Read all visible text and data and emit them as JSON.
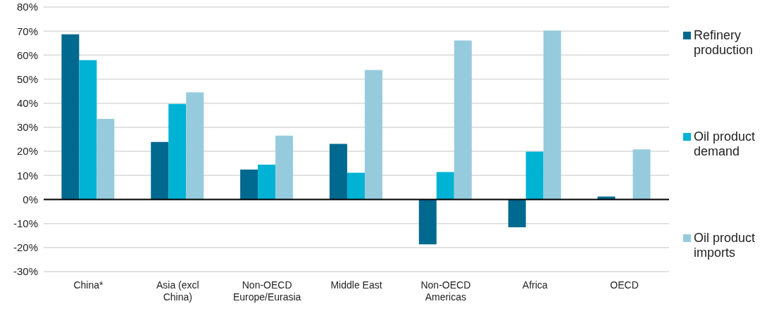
{
  "chart_data": {
    "type": "bar",
    "categories": [
      "China*",
      "Asia (excl\nChina)",
      "Non-OECD\nEurope/Eurasia",
      "Middle East",
      "Non-OECD\nAmericas",
      "Africa",
      "OECD"
    ],
    "series": [
      {
        "name": "Refinery\nproduction",
        "color": "#006990",
        "values": [
          68.7,
          23.9,
          12.4,
          23.1,
          -18.7,
          -11.6,
          1.2
        ]
      },
      {
        "name": "Oil product\ndemand",
        "color": "#00b2d3",
        "values": [
          57.9,
          39.7,
          14.5,
          11.1,
          11.4,
          19.9,
          null
        ]
      },
      {
        "name": "Oil product\nimports",
        "color": "#96cbdd",
        "values": [
          33.5,
          44.5,
          26.5,
          53.8,
          66.1,
          70.2,
          20.8
        ]
      }
    ],
    "ylim": [
      -30,
      80
    ],
    "yticks": [
      {
        "value": -30,
        "label": "-30%"
      },
      {
        "value": -20,
        "label": "-20%"
      },
      {
        "value": -10,
        "label": "-10%"
      },
      {
        "value": 0,
        "label": "0%"
      },
      {
        "value": 10,
        "label": "10%"
      },
      {
        "value": 20,
        "label": "20%"
      },
      {
        "value": 30,
        "label": "30%"
      },
      {
        "value": 40,
        "label": "40%"
      },
      {
        "value": 50,
        "label": "50%"
      },
      {
        "value": 60,
        "label": "60%"
      },
      {
        "value": 70,
        "label": "70%"
      },
      {
        "value": 80,
        "label": "80%"
      }
    ],
    "grid": "y",
    "legend": "right"
  }
}
